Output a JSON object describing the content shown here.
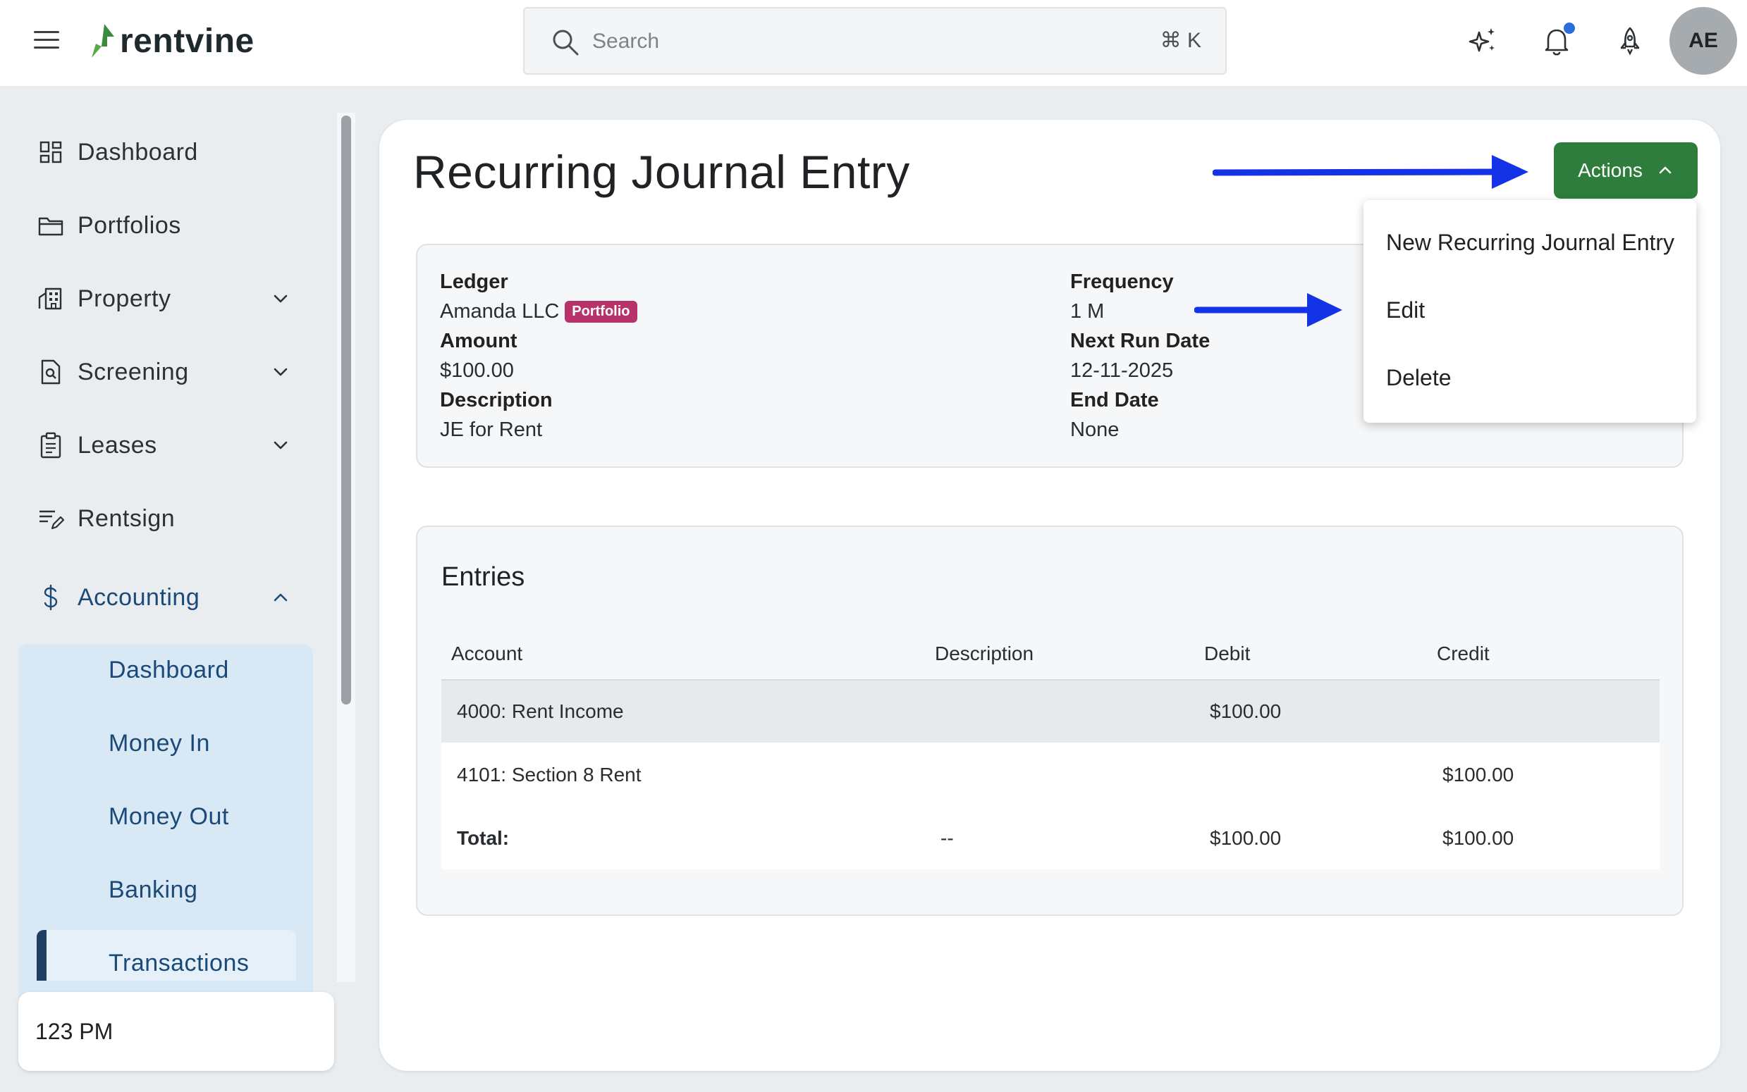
{
  "header": {
    "brand": "rentvine",
    "search_placeholder": "Search",
    "search_shortcut": "⌘ K",
    "avatar_initials": "AE",
    "icons": [
      "menu-icon",
      "sparkles-icon",
      "bell-icon",
      "rocket-icon"
    ]
  },
  "sidebar": {
    "items": [
      {
        "label": "Dashboard",
        "icon": "grid-icon"
      },
      {
        "label": "Portfolios",
        "icon": "folder-icon"
      },
      {
        "label": "Property",
        "icon": "building-icon"
      },
      {
        "label": "Screening",
        "icon": "document-search-icon"
      },
      {
        "label": "Leases",
        "icon": "clipboard-icon"
      },
      {
        "label": "Rentsign",
        "icon": "signature-icon"
      },
      {
        "label": "Accounting",
        "icon": "dollar-icon"
      }
    ],
    "accounting_subitems": [
      "Dashboard",
      "Money In",
      "Money Out",
      "Banking",
      "Transactions"
    ],
    "active_subitem": "Transactions",
    "status_card": "123 PM"
  },
  "page": {
    "title": "Recurring Journal Entry",
    "actions_label": "Actions"
  },
  "details": {
    "ledger_label": "Ledger",
    "ledger_value": "Amanda LLC",
    "ledger_badge": "Portfolio",
    "amount_label": "Amount",
    "amount_value": "$100.00",
    "description_label": "Description",
    "description_value": "JE for Rent",
    "frequency_label": "Frequency",
    "frequency_value": "1 M",
    "next_run_label": "Next Run Date",
    "next_run_value": "12-11-2025",
    "end_date_label": "End Date",
    "end_date_value": "None"
  },
  "entries": {
    "title": "Entries",
    "columns": [
      "Account",
      "Description",
      "Debit",
      "Credit"
    ],
    "rows": [
      {
        "account": "4000: Rent Income",
        "description": "",
        "debit": "$100.00",
        "credit": ""
      },
      {
        "account": "4101: Section 8 Rent",
        "description": "",
        "debit": "",
        "credit": "$100.00"
      }
    ],
    "total": {
      "account": "Total:",
      "description": "--",
      "debit": "$100.00",
      "credit": "$100.00"
    }
  },
  "actions_menu": {
    "items": [
      "New Recurring Journal Entry",
      "Edit",
      "Delete"
    ]
  },
  "colors": {
    "accent_green": "#2e7d3c",
    "badge_pink": "#b8336a",
    "annotation_arrow": "#1432e6",
    "sidebar_active": "#d8e8f4"
  }
}
